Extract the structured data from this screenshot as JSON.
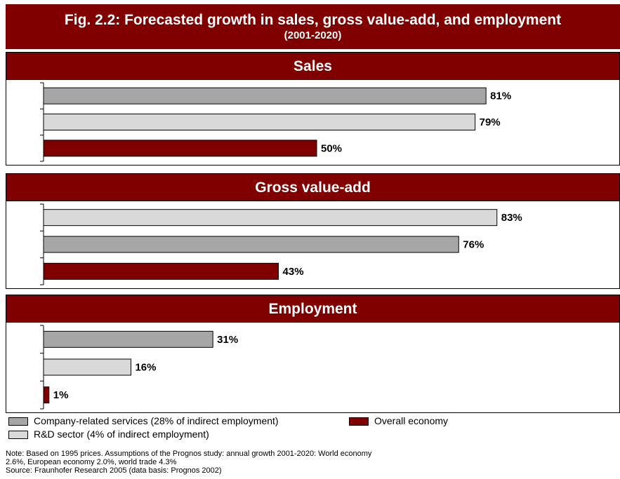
{
  "title": "Fig. 2.2: Forecasted growth in sales, gross value-add, and employment",
  "subtitle": "(2001-2020)",
  "colors": {
    "company_services": "#a6a6a6",
    "rd_sector": "#d9d9d9",
    "overall_economy": "#800000",
    "header_bg": "#800000"
  },
  "chart_data": [
    {
      "type": "bar",
      "orientation": "horizontal",
      "title": "Sales",
      "xlim": [
        0,
        100
      ],
      "bars": [
        {
          "series": "Company-related services (28% of indirect employment)",
          "value": 81,
          "label": "81%"
        },
        {
          "series": "R&D sector (4% of indirect employment)",
          "value": 79,
          "label": "79%"
        },
        {
          "series": "Overall economy",
          "value": 50,
          "label": "50%"
        }
      ]
    },
    {
      "type": "bar",
      "orientation": "horizontal",
      "title": "Gross value-add",
      "xlim": [
        0,
        100
      ],
      "bars": [
        {
          "series": "R&D sector (4% of indirect employment)",
          "value": 83,
          "label": "83%"
        },
        {
          "series": "Company-related services (28% of indirect employment)",
          "value": 76,
          "label": "76%"
        },
        {
          "series": "Overall economy",
          "value": 43,
          "label": "43%"
        }
      ]
    },
    {
      "type": "bar",
      "orientation": "horizontal",
      "title": "Employment",
      "xlim": [
        0,
        100
      ],
      "bars": [
        {
          "series": "Company-related services (28% of indirect employment)",
          "value": 31,
          "label": "31%"
        },
        {
          "series": "R&D sector (4% of indirect employment)",
          "value": 16,
          "label": "16%"
        },
        {
          "series": "Overall economy",
          "value": 1,
          "label": "1%"
        }
      ]
    }
  ],
  "legend": {
    "company_services": "Company-related services (28% of indirect employment)",
    "rd_sector": "R&D sector (4% of indirect employment)",
    "overall_economy": "Overall economy"
  },
  "notes": {
    "line1": "Note:  Based on 1995 prices.  Assumptions of the Prognos study: annual growth 2001-2020: World economy",
    "line2": "2.6%, European economy 2.0%, world trade 4.3%",
    "line3": "Source: Fraunhofer Research 2005 (data basis: Prognos 2002)"
  }
}
